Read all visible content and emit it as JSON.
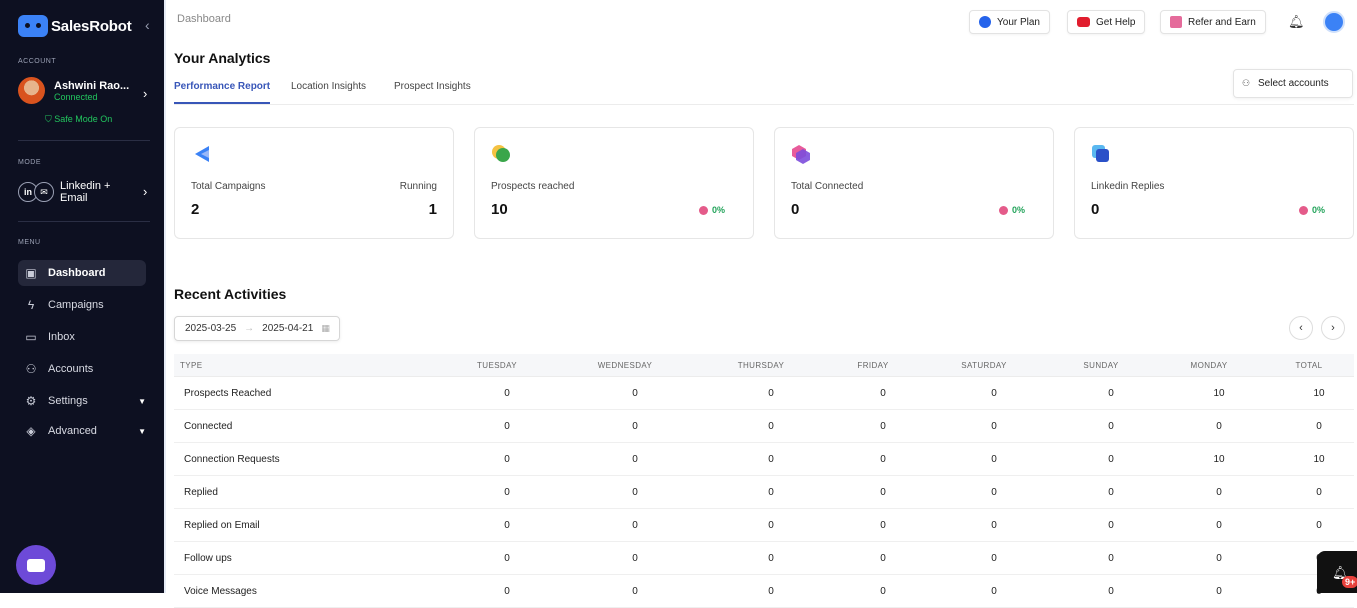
{
  "app": {
    "name": "SalesRobot"
  },
  "sidebar": {
    "account_label": "ACCOUNT",
    "account_name": "Ashwini Rao...",
    "account_status": "Connected",
    "safe_mode": "Safe Mode On",
    "mode_label": "MODE",
    "mode_text_line1": "Linkedin +",
    "mode_text_line2": "Email",
    "menu_label": "MENU",
    "items": [
      {
        "label": "Dashboard",
        "icon": "dashboard-icon"
      },
      {
        "label": "Campaigns",
        "icon": "bolt-icon"
      },
      {
        "label": "Inbox",
        "icon": "inbox-icon"
      },
      {
        "label": "Accounts",
        "icon": "users-icon"
      },
      {
        "label": "Settings",
        "icon": "gear-icon"
      },
      {
        "label": "Advanced",
        "icon": "layers-icon"
      }
    ]
  },
  "header": {
    "breadcrumb": "Dashboard",
    "your_plan": "Your Plan",
    "get_help": "Get Help",
    "refer": "Refer and Earn"
  },
  "analytics": {
    "title": "Your Analytics",
    "tabs": [
      "Performance Report",
      "Location Insights",
      "Prospect Insights"
    ],
    "select_accounts": "Select accounts",
    "cards": [
      {
        "label": "Total Campaigns",
        "value": "2",
        "right_label": "Running",
        "right_value": "1"
      },
      {
        "label": "Prospects reached",
        "value": "10",
        "pct": "0%"
      },
      {
        "label": "Total Connected",
        "value": "0",
        "pct": "0%"
      },
      {
        "label": "Linkedin Replies",
        "value": "0",
        "pct": "0%"
      }
    ]
  },
  "recent": {
    "title": "Recent Activities",
    "date_from": "2025-03-25",
    "date_to": "2025-04-21",
    "columns": [
      "TYPE",
      "TUESDAY",
      "WEDNESDAY",
      "THURSDAY",
      "FRIDAY",
      "SATURDAY",
      "SUNDAY",
      "MONDAY",
      "TOTAL"
    ],
    "rows": [
      [
        "Prospects Reached",
        "0",
        "0",
        "0",
        "0",
        "0",
        "0",
        "10",
        "10"
      ],
      [
        "Connected",
        "0",
        "0",
        "0",
        "0",
        "0",
        "0",
        "0",
        "0"
      ],
      [
        "Connection Requests",
        "0",
        "0",
        "0",
        "0",
        "0",
        "0",
        "10",
        "10"
      ],
      [
        "Replied",
        "0",
        "0",
        "0",
        "0",
        "0",
        "0",
        "0",
        "0"
      ],
      [
        "Replied on Email",
        "0",
        "0",
        "0",
        "0",
        "0",
        "0",
        "0",
        "0"
      ],
      [
        "Follow ups",
        "0",
        "0",
        "0",
        "0",
        "0",
        "0",
        "0",
        "0"
      ],
      [
        "Voice Messages",
        "0",
        "0",
        "0",
        "0",
        "0",
        "0",
        "0",
        "0"
      ]
    ]
  },
  "notifications": {
    "badge": "9+"
  },
  "colors": {
    "sidebar_bg": "#0d1021",
    "accent": "#3856b8",
    "connected": "#22c55e",
    "chat": "#6d4ad8"
  }
}
